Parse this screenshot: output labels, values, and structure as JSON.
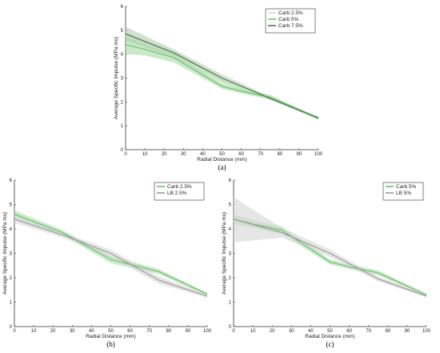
{
  "chart_data": [
    {
      "type": "line",
      "panel_label": "(a)",
      "xlabel": "Radial Distance (mm)",
      "ylabel": "Average Specific Impulse (MPa ms)",
      "x_ticks": [
        0,
        10,
        20,
        30,
        40,
        50,
        60,
        70,
        80,
        90,
        100
      ],
      "y_ticks": [
        0,
        1,
        2,
        3,
        4,
        5,
        6
      ],
      "xlim": [
        0,
        100
      ],
      "ylim": [
        0,
        6
      ],
      "grid": false,
      "legend_position": "top-right",
      "series": [
        {
          "name": "Carb 2.5%",
          "color": "#c9e4c4",
          "band": "#cfe9c9",
          "x": [
            0,
            25,
            50,
            75,
            100
          ],
          "y": [
            4.75,
            4.0,
            2.85,
            2.15,
            1.35
          ],
          "y_lower": [
            4.55,
            3.85,
            2.7,
            2.1,
            1.3
          ],
          "y_upper": [
            4.95,
            4.15,
            3.0,
            2.2,
            1.4
          ]
        },
        {
          "name": "Carb 5%",
          "color": "#6cc36c",
          "band": "#a9daa6",
          "x": [
            0,
            10,
            25,
            50,
            60,
            75,
            100
          ],
          "y": [
            4.4,
            4.2,
            3.85,
            2.65,
            2.45,
            2.2,
            1.3
          ],
          "y_lower": [
            4.0,
            3.95,
            3.65,
            2.55,
            2.35,
            2.1,
            1.25
          ],
          "y_upper": [
            4.8,
            4.45,
            4.05,
            2.75,
            2.55,
            2.3,
            1.35
          ]
        },
        {
          "name": "Carb 7.5%",
          "color": "#4a7a4a",
          "band": "#b8cdb6",
          "x": [
            0,
            25,
            50,
            75,
            100
          ],
          "y": [
            4.85,
            4.05,
            3.0,
            2.15,
            1.33
          ],
          "y_lower": [
            4.6,
            3.9,
            2.85,
            2.08,
            1.28
          ],
          "y_upper": [
            5.15,
            4.2,
            3.15,
            2.22,
            1.38
          ]
        }
      ]
    },
    {
      "type": "line",
      "panel_label": "(b)",
      "xlabel": "Radial Distance (mm)",
      "ylabel": "Average Specific Impulse (MPa ms)",
      "x_ticks": [
        0,
        10,
        20,
        30,
        40,
        50,
        60,
        70,
        80,
        90,
        100
      ],
      "y_ticks": [
        0,
        1,
        2,
        3,
        4,
        5,
        6
      ],
      "xlim": [
        0,
        100
      ],
      "ylim": [
        0,
        6
      ],
      "grid": false,
      "legend_position": "top-right",
      "series": [
        {
          "name": "Carb 2.5%",
          "color": "#6cc36c",
          "band": "#a9daa6",
          "x": [
            0,
            25,
            50,
            75,
            100
          ],
          "y": [
            4.6,
            3.85,
            2.75,
            2.25,
            1.33
          ],
          "y_lower": [
            4.45,
            3.75,
            2.6,
            2.15,
            1.28
          ],
          "y_upper": [
            4.75,
            3.95,
            2.9,
            2.35,
            1.38
          ]
        },
        {
          "name": "LB 2.5%",
          "color": "#9a9a9a",
          "band": "#d6d6d6",
          "x": [
            0,
            25,
            50,
            75,
            100
          ],
          "y": [
            4.4,
            3.75,
            3.0,
            1.9,
            1.25
          ],
          "y_lower": [
            4.25,
            3.65,
            2.85,
            1.75,
            1.18
          ],
          "y_upper": [
            4.55,
            3.85,
            3.15,
            2.05,
            1.32
          ]
        }
      ]
    },
    {
      "type": "line",
      "panel_label": "(c)",
      "xlabel": "Radial Distance (mm)",
      "ylabel": "Average Specific Impulse (MPa ms)",
      "x_ticks": [
        0,
        10,
        20,
        30,
        40,
        50,
        60,
        70,
        80,
        90,
        100
      ],
      "y_ticks": [
        0,
        1,
        2,
        3,
        4,
        5,
        6
      ],
      "xlim": [
        0,
        100
      ],
      "ylim": [
        0,
        6
      ],
      "grid": false,
      "legend_position": "top-right",
      "series": [
        {
          "name": "Carb 5%",
          "color": "#6cc36c",
          "band": "#a9daa6",
          "x": [
            0,
            10,
            25,
            50,
            60,
            75,
            100
          ],
          "y": [
            4.4,
            4.2,
            3.95,
            2.65,
            2.45,
            2.2,
            1.3
          ],
          "y_lower": [
            4.2,
            4.05,
            3.8,
            2.55,
            2.35,
            2.1,
            1.25
          ],
          "y_upper": [
            4.6,
            4.35,
            4.1,
            2.75,
            2.55,
            2.3,
            1.35
          ]
        },
        {
          "name": "LB 5%",
          "color": "#9a9a9a",
          "band": "#d6d6d6",
          "x": [
            0,
            25,
            50,
            75,
            100
          ],
          "y": [
            4.4,
            3.85,
            3.0,
            1.95,
            1.25
          ],
          "y_lower": [
            3.45,
            3.65,
            2.85,
            1.85,
            1.2
          ],
          "y_upper": [
            5.3,
            4.05,
            3.15,
            2.05,
            1.3
          ]
        }
      ]
    }
  ]
}
